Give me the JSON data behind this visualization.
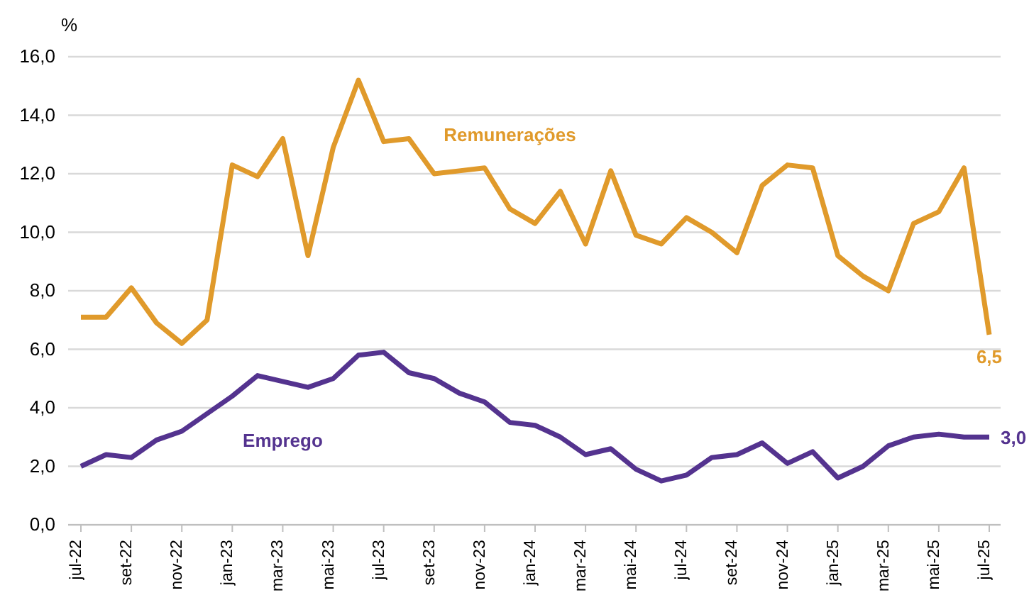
{
  "chart_data": {
    "type": "line",
    "ylabel": "%",
    "categories": [
      "jul-22",
      null,
      "set-22",
      null,
      "nov-22",
      null,
      "jan-23",
      null,
      "mar-23",
      null,
      "mai-23",
      null,
      "jul-23",
      null,
      "set-23",
      null,
      "nov-23",
      null,
      "jan-24",
      null,
      "mar-24",
      null,
      "mai-24",
      null,
      "jul-24",
      null,
      "set-24",
      null,
      "nov-24",
      null,
      "jan-25",
      null,
      "mar-25",
      null,
      "mai-25",
      null,
      "jul-25"
    ],
    "series": [
      {
        "name": "Remunerações",
        "color": "#e09a2b",
        "values": [
          7.1,
          7.1,
          8.1,
          6.9,
          6.2,
          7.0,
          12.3,
          11.9,
          13.2,
          9.2,
          12.9,
          15.2,
          13.1,
          13.2,
          12.0,
          12.1,
          12.2,
          10.8,
          10.3,
          11.4,
          9.6,
          12.1,
          9.9,
          9.6,
          10.5,
          10.0,
          9.3,
          11.6,
          12.3,
          12.2,
          9.2,
          8.5,
          8.0,
          10.3,
          10.7,
          12.2,
          6.5
        ]
      },
      {
        "name": "Emprego",
        "color": "#54338f",
        "values": [
          2.0,
          2.4,
          2.3,
          2.9,
          3.2,
          3.8,
          4.4,
          5.1,
          4.9,
          4.7,
          5.0,
          5.8,
          5.9,
          5.2,
          5.0,
          4.5,
          4.2,
          3.5,
          3.4,
          3.0,
          2.4,
          2.6,
          1.9,
          1.5,
          1.7,
          2.3,
          2.4,
          2.8,
          2.1,
          2.5,
          1.6,
          2.0,
          2.7,
          3.0,
          3.1,
          3.0,
          3.0
        ]
      }
    ],
    "annotations": [
      {
        "text": "6,5",
        "x": "jul-25",
        "y": 6.5
      },
      {
        "text": "3,0",
        "x": "jul-25",
        "y": 3.0
      }
    ],
    "ylim": [
      0,
      16
    ],
    "yticks": [
      {
        "value": 0,
        "label": "0,0"
      },
      {
        "value": 2,
        "label": "2,0"
      },
      {
        "value": 4,
        "label": "4,0"
      },
      {
        "value": 6,
        "label": "6,0"
      },
      {
        "value": 8,
        "label": "8,0"
      },
      {
        "value": 10,
        "label": "10,0"
      },
      {
        "value": 12,
        "label": "12,0"
      },
      {
        "value": 14,
        "label": "14,0"
      },
      {
        "value": 16,
        "label": "16,0"
      }
    ],
    "grid": "y",
    "legend": false,
    "marker": "none",
    "line_style": "solid"
  }
}
